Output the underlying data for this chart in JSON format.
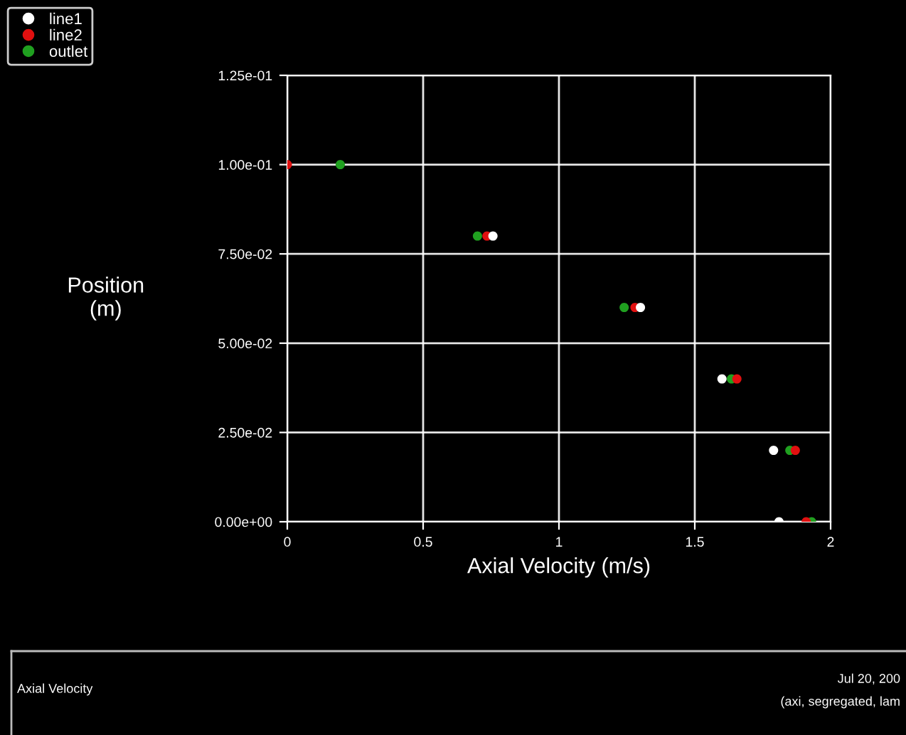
{
  "chart_data": {
    "type": "scatter",
    "xlabel": "Axial Velocity (m/s)",
    "ylabel": "Position\n(m)",
    "series": [
      {
        "name": "line1",
        "color": "#ffffff",
        "x": [
          null,
          0.757,
          1.3,
          1.6,
          1.79,
          1.81
        ],
        "values": [
          null,
          0.08,
          0.06,
          0.04,
          0.02,
          0
        ]
      },
      {
        "name": "line2",
        "color": "#e01010",
        "x": [
          0,
          0.735,
          1.28,
          1.655,
          1.87,
          1.91
        ],
        "values": [
          0.1,
          0.08,
          0.06,
          0.04,
          0.02,
          0
        ]
      },
      {
        "name": "outlet",
        "color": "#20a020",
        "x": [
          0.195,
          0.7,
          1.24,
          1.635,
          1.85,
          1.93
        ],
        "values": [
          0.1,
          0.08,
          0.06,
          0.04,
          0.02,
          0
        ]
      }
    ],
    "xlim": [
      0,
      2
    ],
    "xticks": [
      0,
      0.5,
      1,
      1.5,
      2
    ],
    "ylim": [
      0,
      0.125
    ],
    "yticks": [
      {
        "value": 0,
        "label": "0.00e+00"
      },
      {
        "value": 0.025,
        "label": "2.50e-02"
      },
      {
        "value": 0.05,
        "label": "5.00e-02"
      },
      {
        "value": 0.075,
        "label": "7.50e-02"
      },
      {
        "value": 0.1,
        "label": "1.00e-01"
      },
      {
        "value": 0.125,
        "label": "1.25e-01"
      }
    ],
    "grid": true,
    "legend": "top left",
    "marker": "circle",
    "annotations": [
      "Axial Velocity",
      "Jul 20, 200",
      "(axi, segregated, lam"
    ]
  }
}
